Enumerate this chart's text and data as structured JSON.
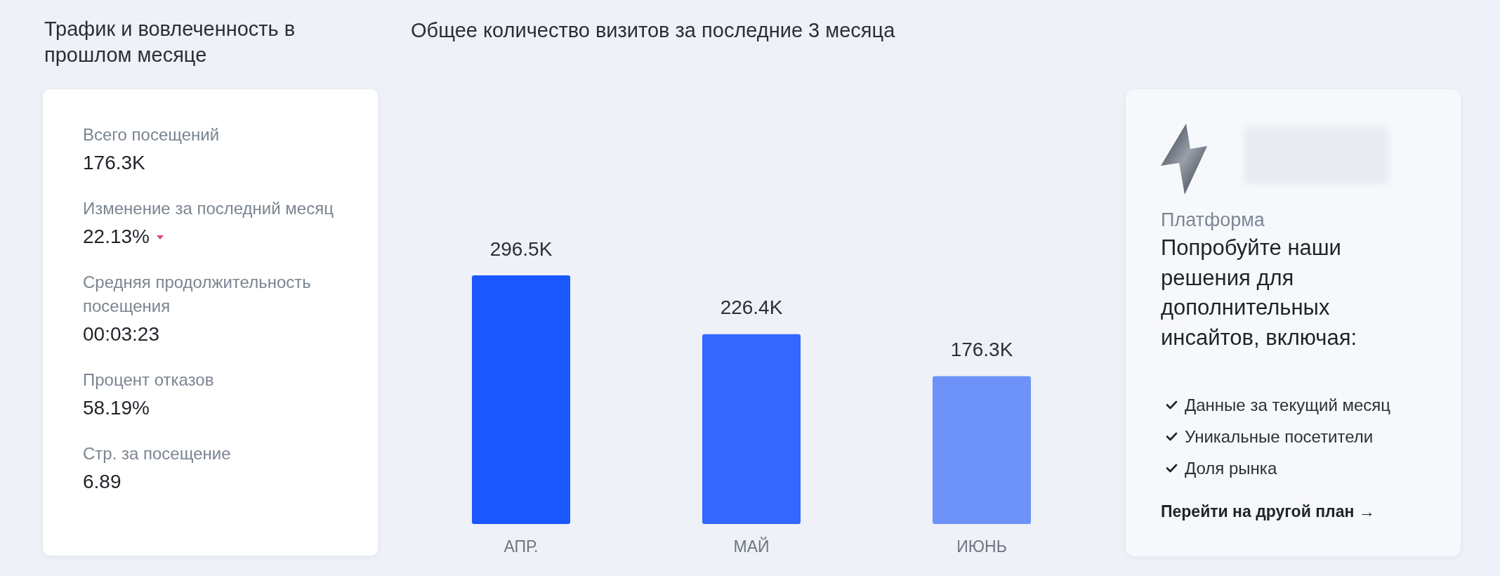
{
  "chart_data": [
    {
      "type": "other",
      "title": "Трафик и вовлеченность в прошлом месяце",
      "annotations": [
        "Всего посещений",
        "176.3K",
        "Изменение за последний месяц",
        "22.13%",
        "Средняя продолжительность посещения",
        "00:03:23",
        "Процент отказов",
        "58.19%",
        "Стр. за посещение",
        "6.89"
      ]
    },
    {
      "type": "bar",
      "title": "Общее количество визитов за последние 3 месяца",
      "categories": [
        "АПР.",
        "МАЙ",
        "ИЮНЬ"
      ],
      "values": [
        296.5,
        226.4,
        176.3
      ],
      "colors": [
        "#1b57ff",
        "#3467ff",
        "#6e93f8"
      ],
      "value_labels": [
        "296.5K",
        "226.4K",
        "176.3K"
      ]
    },
    {
      "type": "other",
      "annotations": [
        "Платформа",
        "Попробуйте наши решения для дополнительных инсайтов, включая:",
        "Данные за текущий месяц",
        "Уникальные посетители",
        "Доля рынка",
        "Перейти на другой план →"
      ]
    }
  ]
}
